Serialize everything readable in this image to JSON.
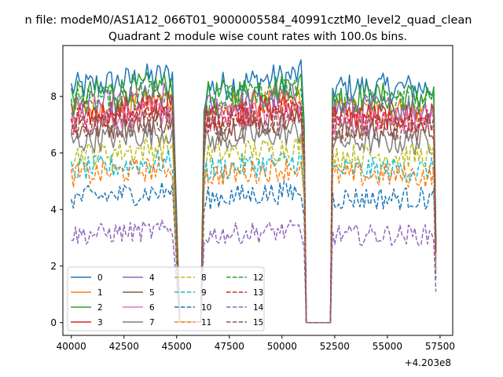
{
  "figure": {
    "suptitle": "n file: modeM0/AS1A12_066T01_9000005584_40991cztM0_level2_quad_clean",
    "title": "Quadrant 2 module wise count rates with 100.0s bins."
  },
  "chart_data": {
    "type": "line",
    "title": "Quadrant 2 module wise count rates with 100.0s bins.",
    "xlabel": "",
    "ylabel": "",
    "x_offset_label": "+4.203e8",
    "xlim": [
      39600,
      58100
    ],
    "ylim": [
      -0.45,
      9.8
    ],
    "x_ticks": [
      40000,
      42500,
      45000,
      47500,
      50000,
      52500,
      55000,
      57500
    ],
    "y_ticks": [
      0,
      2,
      4,
      6,
      8
    ],
    "grid": false,
    "legend": {
      "placement": "lower-left",
      "columns": 4
    },
    "time_segments": [
      [
        40000,
        44800
      ],
      [
        46400,
        50900
      ],
      [
        52400,
        57200
      ]
    ],
    "drop_ends": [
      [
        45050,
        46200
      ],
      [
        51150,
        52300
      ],
      [
        57300
      ]
    ],
    "series": [
      {
        "name": "0",
        "color": "#1f77b4",
        "dash": "solid",
        "level": 8.3
      },
      {
        "name": "1",
        "color": "#ff7f0e",
        "dash": "solid",
        "level": 7.5
      },
      {
        "name": "2",
        "color": "#2ca02c",
        "dash": "solid",
        "level": 8.0
      },
      {
        "name": "3",
        "color": "#d62728",
        "dash": "solid",
        "level": 7.3
      },
      {
        "name": "4",
        "color": "#9467bd",
        "dash": "solid",
        "level": 7.6
      },
      {
        "name": "5",
        "color": "#8c564b",
        "dash": "solid",
        "level": 6.8
      },
      {
        "name": "6",
        "color": "#e377c2",
        "dash": "solid",
        "level": 7.1
      },
      {
        "name": "7",
        "color": "#7f7f7f",
        "dash": "solid",
        "level": 6.4
      },
      {
        "name": "8",
        "color": "#bcbd22",
        "dash": "dashed",
        "level": 5.9
      },
      {
        "name": "9",
        "color": "#17becf",
        "dash": "dashed",
        "level": 5.4
      },
      {
        "name": "10",
        "color": "#1f77b4",
        "dash": "dashed",
        "level": 4.4
      },
      {
        "name": "11",
        "color": "#ff7f0e",
        "dash": "dashed",
        "level": 5.2
      },
      {
        "name": "12",
        "color": "#2ca02c",
        "dash": "dashed",
        "level": 7.8
      },
      {
        "name": "13",
        "color": "#d62728",
        "dash": "dashed",
        "level": 7.2
      },
      {
        "name": "14",
        "color": "#9467bd",
        "dash": "dashed",
        "level": 3.1
      },
      {
        "name": "15",
        "color": "#8c564b",
        "dash": "dashed",
        "level": 6.9
      }
    ]
  }
}
